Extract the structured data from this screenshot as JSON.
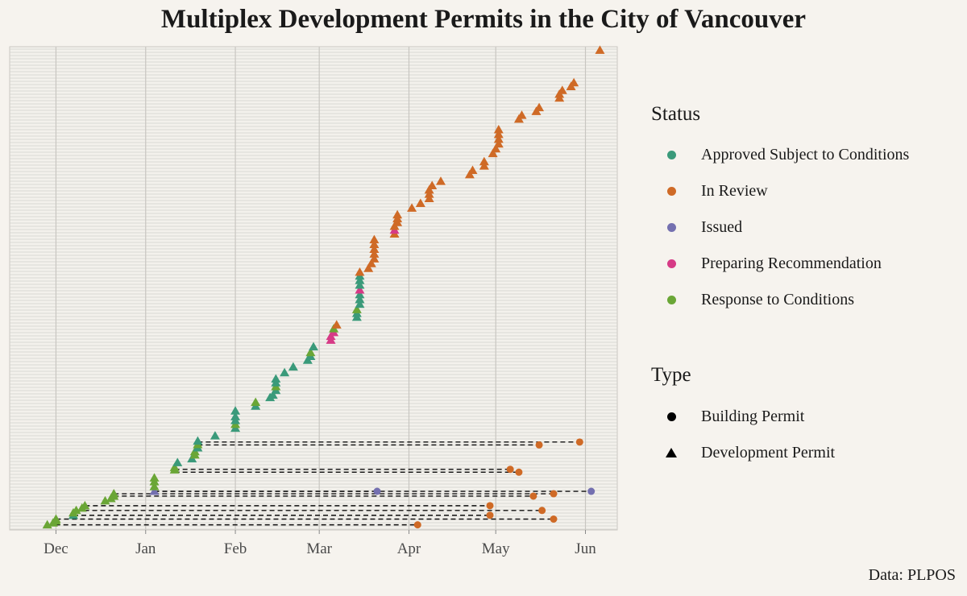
{
  "chart_data": {
    "type": "scatter",
    "title": "Multiplex Development Permits in the City of Vancouver",
    "caption": "Data: PLPOS",
    "x_ticks": [
      "Dec",
      "Jan",
      "Feb",
      "Mar",
      "Apr",
      "May",
      "Jun"
    ],
    "x_tick_dates": [
      "2023-12-01",
      "2024-01-01",
      "2024-02-01",
      "2024-03-01",
      "2024-04-01",
      "2024-05-01",
      "2024-06-01"
    ],
    "xlim": [
      "2023-11-15",
      "2024-06-12"
    ],
    "y_axis": "one row per permit (unlabeled)",
    "ylim": [
      0,
      100
    ],
    "grid": true,
    "legend_placement": "right",
    "status_legend": {
      "title": "Status",
      "entries": [
        {
          "label": "Approved Subject to Conditions",
          "color": "#3a9a7a"
        },
        {
          "label": "In Review",
          "color": "#cf6a26"
        },
        {
          "label": "Issued",
          "color": "#7470b0"
        },
        {
          "label": "Preparing Recommendation",
          "color": "#d63a86"
        },
        {
          "label": "Response to Conditions",
          "color": "#6aa636"
        }
      ]
    },
    "type_legend": {
      "title": "Type",
      "entries": [
        {
          "label": "Building Permit",
          "shape": "circle"
        },
        {
          "label": "Development Permit",
          "shape": "triangle"
        }
      ]
    },
    "development_permits": [
      {
        "date": "2023-11-28",
        "row": 0.4,
        "status": "Response to Conditions"
      },
      {
        "date": "2023-11-30",
        "row": 0.8,
        "status": "Response to Conditions"
      },
      {
        "date": "2023-12-01",
        "row": 1.2,
        "status": "Response to Conditions"
      },
      {
        "date": "2023-12-01",
        "row": 1.6,
        "status": "Response to Conditions"
      },
      {
        "date": "2023-12-07",
        "row": 2.4,
        "status": "Approved Subject to Conditions"
      },
      {
        "date": "2023-12-07",
        "row": 2.9,
        "status": "Response to Conditions"
      },
      {
        "date": "2023-12-08",
        "row": 3.4,
        "status": "Response to Conditions"
      },
      {
        "date": "2023-12-10",
        "row": 3.9,
        "status": "Response to Conditions"
      },
      {
        "date": "2023-12-11",
        "row": 4.4,
        "status": "Response to Conditions"
      },
      {
        "date": "2023-12-18",
        "row": 5.4,
        "status": "Response to Conditions"
      },
      {
        "date": "2023-12-20",
        "row": 5.9,
        "status": "Response to Conditions"
      },
      {
        "date": "2023-12-21",
        "row": 6.4,
        "status": "Response to Conditions"
      },
      {
        "date": "2023-12-21",
        "row": 6.9,
        "status": "Response to Conditions"
      },
      {
        "date": "2024-01-04",
        "row": 7.4,
        "status": "Issued"
      },
      {
        "date": "2024-01-04",
        "row": 8.4,
        "status": "Response to Conditions"
      },
      {
        "date": "2024-01-04",
        "row": 9.4,
        "status": "Response to Conditions"
      },
      {
        "date": "2024-01-04",
        "row": 10.2,
        "status": "Response to Conditions"
      },
      {
        "date": "2024-01-11",
        "row": 11.9,
        "status": "Response to Conditions"
      },
      {
        "date": "2024-01-11",
        "row": 12.4,
        "status": "Response to Conditions"
      },
      {
        "date": "2024-01-12",
        "row": 13.4,
        "status": "Approved Subject to Conditions"
      },
      {
        "date": "2024-01-17",
        "row": 14.2,
        "status": "Approved Subject to Conditions"
      },
      {
        "date": "2024-01-18",
        "row": 15.0,
        "status": "Response to Conditions"
      },
      {
        "date": "2024-01-18",
        "row": 15.7,
        "status": "Response to Conditions"
      },
      {
        "date": "2024-01-19",
        "row": 16.5,
        "status": "Approved Subject to Conditions"
      },
      {
        "date": "2024-01-19",
        "row": 17.2,
        "status": "Response to Conditions"
      },
      {
        "date": "2024-01-19",
        "row": 17.9,
        "status": "Approved Subject to Conditions"
      },
      {
        "date": "2024-01-25",
        "row": 19.0,
        "status": "Approved Subject to Conditions"
      },
      {
        "date": "2024-02-01",
        "row": 20.6,
        "status": "Approved Subject to Conditions"
      },
      {
        "date": "2024-02-01",
        "row": 21.4,
        "status": "Response to Conditions"
      },
      {
        "date": "2024-02-01",
        "row": 22.2,
        "status": "Approved Subject to Conditions"
      },
      {
        "date": "2024-02-01",
        "row": 23.0,
        "status": "Approved Subject to Conditions"
      },
      {
        "date": "2024-02-01",
        "row": 24.2,
        "status": "Approved Subject to Conditions"
      },
      {
        "date": "2024-02-08",
        "row": 25.2,
        "status": "Approved Subject to Conditions"
      },
      {
        "date": "2024-02-08",
        "row": 26.0,
        "status": "Response to Conditions"
      },
      {
        "date": "2024-02-13",
        "row": 27.0,
        "status": "Approved Subject to Conditions"
      },
      {
        "date": "2024-02-14",
        "row": 27.5,
        "status": "Approved Subject to Conditions"
      },
      {
        "date": "2024-02-15",
        "row": 28.5,
        "status": "Approved Subject to Conditions"
      },
      {
        "date": "2024-02-15",
        "row": 29.3,
        "status": "Response to Conditions"
      },
      {
        "date": "2024-02-15",
        "row": 30.1,
        "status": "Approved Subject to Conditions"
      },
      {
        "date": "2024-02-15",
        "row": 30.9,
        "status": "Approved Subject to Conditions"
      },
      {
        "date": "2024-02-18",
        "row": 32.2,
        "status": "Approved Subject to Conditions"
      },
      {
        "date": "2024-02-21",
        "row": 33.4,
        "status": "Approved Subject to Conditions"
      },
      {
        "date": "2024-02-26",
        "row": 34.8,
        "status": "Approved Subject to Conditions"
      },
      {
        "date": "2024-02-27",
        "row": 35.6,
        "status": "Approved Subject to Conditions"
      },
      {
        "date": "2024-02-27",
        "row": 36.4,
        "status": "Response to Conditions"
      },
      {
        "date": "2024-02-28",
        "row": 37.6,
        "status": "Approved Subject to Conditions"
      },
      {
        "date": "2024-03-05",
        "row": 39.0,
        "status": "Preparing Recommendation"
      },
      {
        "date": "2024-03-05",
        "row": 39.8,
        "status": "Preparing Recommendation"
      },
      {
        "date": "2024-03-06",
        "row": 40.6,
        "status": "Preparing Recommendation"
      },
      {
        "date": "2024-03-06",
        "row": 41.4,
        "status": "Response to Conditions"
      },
      {
        "date": "2024-03-07",
        "row": 42.2,
        "status": "In Review"
      },
      {
        "date": "2024-03-14",
        "row": 43.8,
        "status": "Approved Subject to Conditions"
      },
      {
        "date": "2024-03-14",
        "row": 44.6,
        "status": "Approved Subject to Conditions"
      },
      {
        "date": "2024-03-14",
        "row": 45.4,
        "status": "Response to Conditions"
      },
      {
        "date": "2024-03-15",
        "row": 46.5,
        "status": "Approved Subject to Conditions"
      },
      {
        "date": "2024-03-15",
        "row": 47.5,
        "status": "Approved Subject to Conditions"
      },
      {
        "date": "2024-03-15",
        "row": 48.5,
        "status": "Approved Subject to Conditions"
      },
      {
        "date": "2024-03-15",
        "row": 49.5,
        "status": "Preparing Recommendation"
      },
      {
        "date": "2024-03-15",
        "row": 50.5,
        "status": "Approved Subject to Conditions"
      },
      {
        "date": "2024-03-15",
        "row": 51.5,
        "status": "Approved Subject to Conditions"
      },
      {
        "date": "2024-03-15",
        "row": 52.4,
        "status": "Approved Subject to Conditions"
      },
      {
        "date": "2024-03-15",
        "row": 53.2,
        "status": "In Review"
      },
      {
        "date": "2024-03-18",
        "row": 54.0,
        "status": "In Review"
      },
      {
        "date": "2024-03-19",
        "row": 55.0,
        "status": "In Review"
      },
      {
        "date": "2024-03-20",
        "row": 56.0,
        "status": "In Review"
      },
      {
        "date": "2024-03-20",
        "row": 57.0,
        "status": "In Review"
      },
      {
        "date": "2024-03-20",
        "row": 58.0,
        "status": "In Review"
      },
      {
        "date": "2024-03-20",
        "row": 59.0,
        "status": "In Review"
      },
      {
        "date": "2024-03-20",
        "row": 60.0,
        "status": "In Review"
      },
      {
        "date": "2024-03-27",
        "row": 61.2,
        "status": "In Review"
      },
      {
        "date": "2024-03-27",
        "row": 62.0,
        "status": "Preparing Recommendation"
      },
      {
        "date": "2024-03-27",
        "row": 62.8,
        "status": "In Review"
      },
      {
        "date": "2024-03-28",
        "row": 63.6,
        "status": "In Review"
      },
      {
        "date": "2024-03-28",
        "row": 64.4,
        "status": "In Review"
      },
      {
        "date": "2024-03-28",
        "row": 65.2,
        "status": "In Review"
      },
      {
        "date": "2024-04-02",
        "row": 66.6,
        "status": "In Review"
      },
      {
        "date": "2024-04-05",
        "row": 67.6,
        "status": "In Review"
      },
      {
        "date": "2024-04-08",
        "row": 68.6,
        "status": "In Review"
      },
      {
        "date": "2024-04-08",
        "row": 69.5,
        "status": "In Review"
      },
      {
        "date": "2024-04-08",
        "row": 70.4,
        "status": "In Review"
      },
      {
        "date": "2024-04-09",
        "row": 71.3,
        "status": "In Review"
      },
      {
        "date": "2024-04-12",
        "row": 72.2,
        "status": "In Review"
      },
      {
        "date": "2024-04-22",
        "row": 73.6,
        "status": "In Review"
      },
      {
        "date": "2024-04-23",
        "row": 74.5,
        "status": "In Review"
      },
      {
        "date": "2024-04-27",
        "row": 75.4,
        "status": "In Review"
      },
      {
        "date": "2024-04-27",
        "row": 76.3,
        "status": "In Review"
      },
      {
        "date": "2024-04-30",
        "row": 78.0,
        "status": "In Review"
      },
      {
        "date": "2024-05-01",
        "row": 79.0,
        "status": "In Review"
      },
      {
        "date": "2024-05-02",
        "row": 80.0,
        "status": "In Review"
      },
      {
        "date": "2024-05-02",
        "row": 81.0,
        "status": "In Review"
      },
      {
        "date": "2024-05-02",
        "row": 82.0,
        "status": "In Review"
      },
      {
        "date": "2024-05-02",
        "row": 83.0,
        "status": "In Review"
      },
      {
        "date": "2024-05-09",
        "row": 85.2,
        "status": "In Review"
      },
      {
        "date": "2024-05-10",
        "row": 86.0,
        "status": "In Review"
      },
      {
        "date": "2024-05-15",
        "row": 86.8,
        "status": "In Review"
      },
      {
        "date": "2024-05-16",
        "row": 87.6,
        "status": "In Review"
      },
      {
        "date": "2024-05-23",
        "row": 89.6,
        "status": "In Review"
      },
      {
        "date": "2024-05-23",
        "row": 90.4,
        "status": "In Review"
      },
      {
        "date": "2024-05-24",
        "row": 91.2,
        "status": "In Review"
      },
      {
        "date": "2024-05-27",
        "row": 92.0,
        "status": "In Review"
      },
      {
        "date": "2024-05-28",
        "row": 92.8,
        "status": "In Review"
      },
      {
        "date": "2024-06-06",
        "row": 99.6,
        "status": "In Review"
      }
    ],
    "building_permits": [
      {
        "date": "2024-04-04",
        "row": 0.4,
        "status": "In Review",
        "linked_dp_date": "2023-11-28"
      },
      {
        "date": "2024-05-21",
        "row": 1.6,
        "status": "In Review",
        "linked_dp_date": "2023-12-01"
      },
      {
        "date": "2024-04-29",
        "row": 2.4,
        "status": "In Review",
        "linked_dp_date": "2023-12-07"
      },
      {
        "date": "2024-05-17",
        "row": 3.4,
        "status": "In Review",
        "linked_dp_date": "2023-12-08"
      },
      {
        "date": "2024-04-29",
        "row": 4.4,
        "status": "In Review",
        "linked_dp_date": "2023-12-11"
      },
      {
        "date": "2024-05-14",
        "row": 6.4,
        "status": "In Review",
        "linked_dp_date": "2023-12-21"
      },
      {
        "date": "2024-05-21",
        "row": 6.9,
        "status": "In Review",
        "linked_dp_date": "2023-12-21"
      },
      {
        "date": "2024-03-21",
        "row": 7.4,
        "status": "Issued",
        "linked_dp_date": "2024-01-04"
      },
      {
        "date": "2024-06-03",
        "row": 7.4,
        "status": "Issued",
        "linked_dp_date": "2024-01-04"
      },
      {
        "date": "2024-05-06",
        "row": 12.0,
        "status": "In Review",
        "linked_dp_date": "2024-01-11"
      },
      {
        "date": "2024-05-09",
        "row": 11.4,
        "status": "In Review",
        "linked_dp_date": "2024-01-11"
      },
      {
        "date": "2024-05-16",
        "row": 17.1,
        "status": "In Review",
        "linked_dp_date": "2024-01-19"
      },
      {
        "date": "2024-05-30",
        "row": 17.7,
        "status": "In Review",
        "linked_dp_date": "2024-01-19"
      }
    ]
  }
}
